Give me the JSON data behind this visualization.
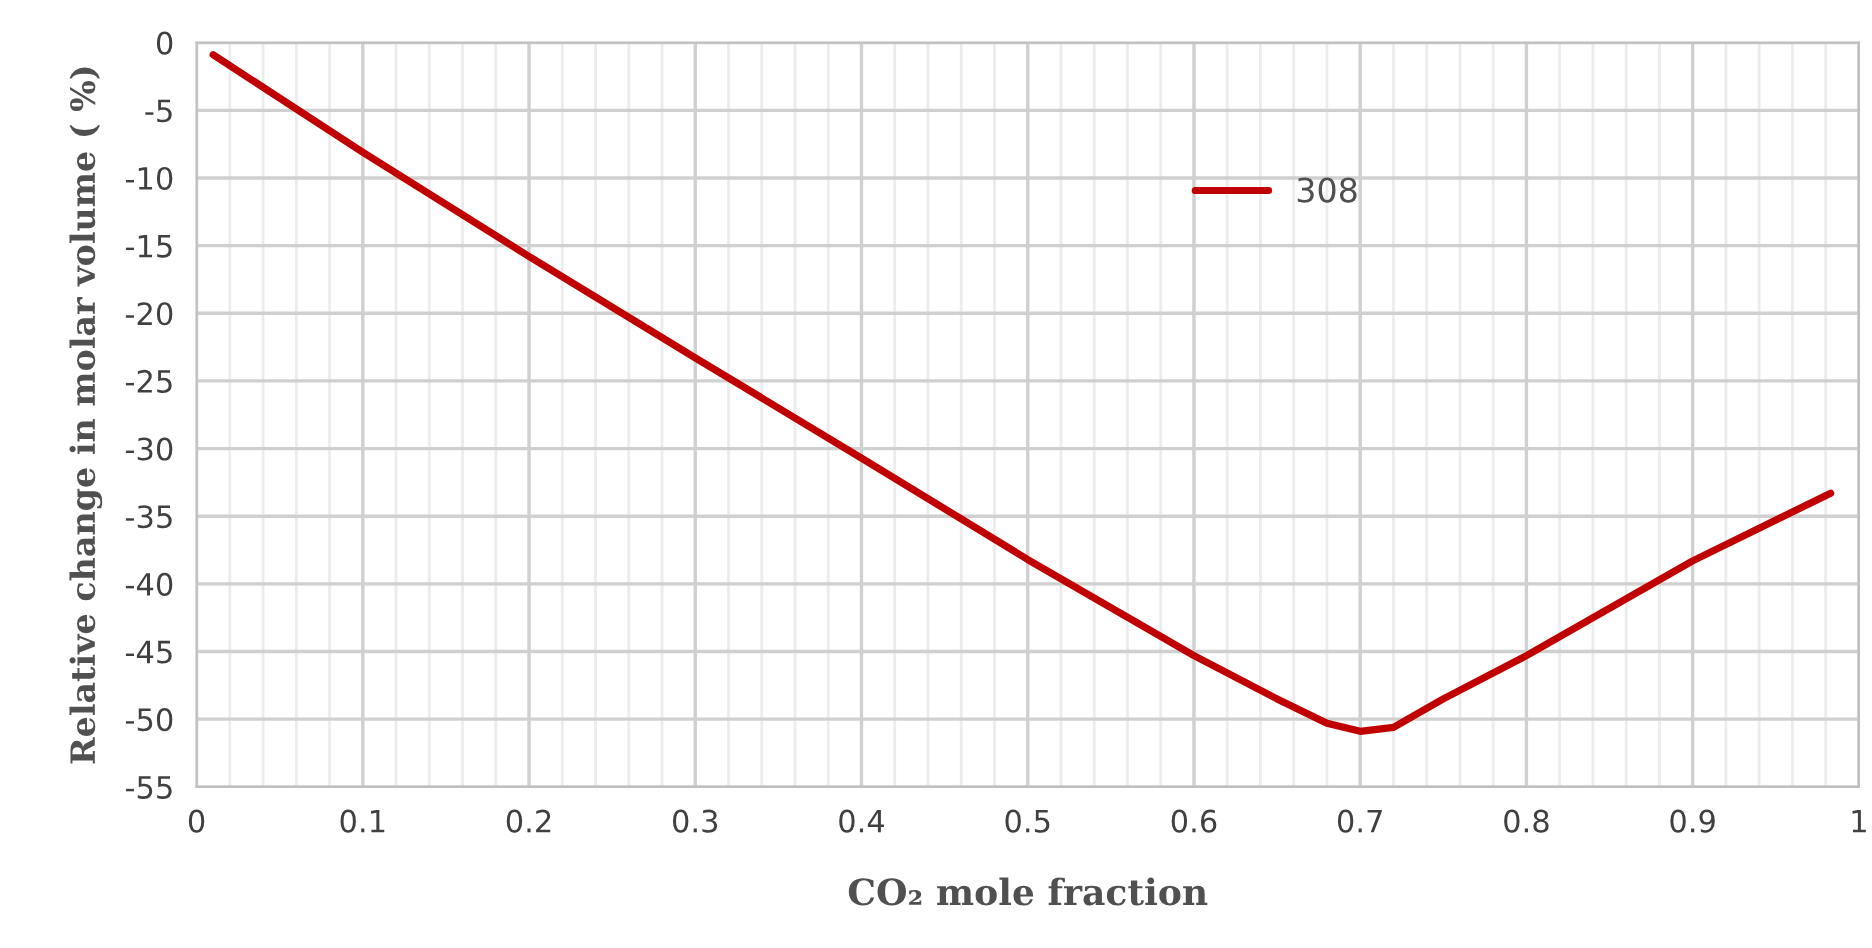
{
  "chart_data": {
    "type": "line",
    "xlabel": "CO₂ mole fraction",
    "ylabel": "Relative change in molar volume ( %)",
    "xlim": [
      0,
      1
    ],
    "xticks": [
      0,
      0.1,
      0.2,
      0.3,
      0.4,
      0.5,
      0.6,
      0.7,
      0.8,
      0.9,
      1
    ],
    "ylim": [
      -55,
      0
    ],
    "yticks": [
      -55,
      -50,
      -45,
      -40,
      -35,
      -30,
      -25,
      -20,
      -15,
      -10,
      -5,
      0
    ],
    "grid": true,
    "legend": "top",
    "marker": "none",
    "line_style": "solid",
    "series": [
      {
        "name": "308",
        "color": "#c00000",
        "x": [
          0.01,
          0.1,
          0.2,
          0.3,
          0.4,
          0.5,
          0.6,
          0.65,
          0.68,
          0.7,
          0.72,
          0.75,
          0.8,
          0.9,
          0.983
        ],
        "values": [
          -0.9,
          -8.1,
          -15.8,
          -23.3,
          -30.7,
          -38.2,
          -45.3,
          -48.5,
          -50.3,
          -50.9,
          -50.6,
          -48.5,
          -45.3,
          -38.3,
          -33.3
        ]
      }
    ]
  }
}
